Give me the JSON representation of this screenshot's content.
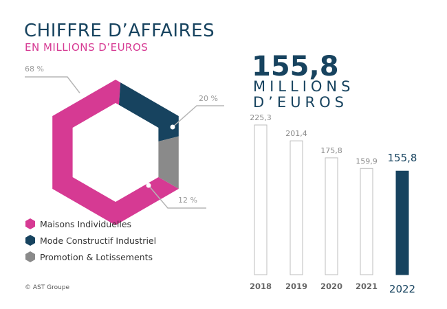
{
  "header": {
    "title": "CHIFFRE D’AFFAIRES",
    "subtitle": "EN MILLIONS D’EUROS"
  },
  "highlight": {
    "value": "155,8",
    "unit_line1": "MILLIONS",
    "unit_line2": "D’EUROS"
  },
  "colors": {
    "navy": "#17435f",
    "pink": "#d63a93",
    "grey": "#8a8a8a",
    "outline": "#bdbdbd"
  },
  "footer": {
    "copyright": "© AST Groupe"
  },
  "chart_data": [
    {
      "type": "pie",
      "style": "hexagonal ring",
      "series": [
        {
          "name": "Maisons Individuelles",
          "value": 68,
          "label": "68 %",
          "color": "#d63a93"
        },
        {
          "name": "Mode Constructif Industriel",
          "value": 20,
          "label": "20 %",
          "color": "#17435f"
        },
        {
          "name": "Promotion & Lotissements",
          "value": 12,
          "label": "12 %",
          "color": "#8a8a8a"
        }
      ],
      "legend_position": "bottom-left"
    },
    {
      "type": "bar",
      "categories": [
        "2018",
        "2019",
        "2020",
        "2021",
        "2022"
      ],
      "values": [
        225.3,
        201.4,
        175.8,
        159.9,
        155.8
      ],
      "value_labels": [
        "225,3",
        "201,4",
        "175,8",
        "159,9",
        "155,8"
      ],
      "highlight_index": 4,
      "ylim": [
        0,
        225.3
      ],
      "grid": false
    }
  ]
}
